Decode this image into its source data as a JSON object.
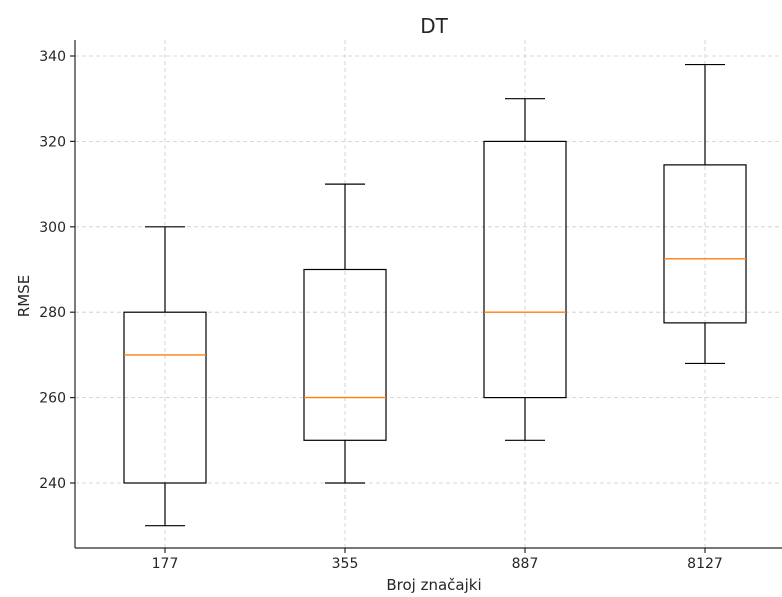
{
  "chart_data": {
    "type": "box",
    "title": "DT",
    "xlabel": "Broj značajki",
    "ylabel": "RMSE",
    "ylim": [
      224,
      343
    ],
    "yticks": [
      240,
      260,
      280,
      300,
      320,
      340
    ],
    "grid": true,
    "categories": [
      "177",
      "355",
      "887",
      "8127"
    ],
    "boxes": [
      {
        "category": "177",
        "whisker_low": 230,
        "q1": 240,
        "median": 270,
        "q3": 280,
        "whisker_high": 300
      },
      {
        "category": "355",
        "whisker_low": 240,
        "q1": 250,
        "median": 260,
        "q3": 290,
        "whisker_high": 310
      },
      {
        "category": "887",
        "whisker_low": 250,
        "q1": 260,
        "median": 280,
        "q3": 320,
        "whisker_high": 330
      },
      {
        "category": "8127",
        "whisker_low": 268,
        "q1": 277.5,
        "median": 292.5,
        "q3": 314.5,
        "whisker_high": 338
      }
    ],
    "colors": {
      "box": "#000000",
      "median": "#ff7f0e",
      "grid": "#cccccc"
    }
  }
}
